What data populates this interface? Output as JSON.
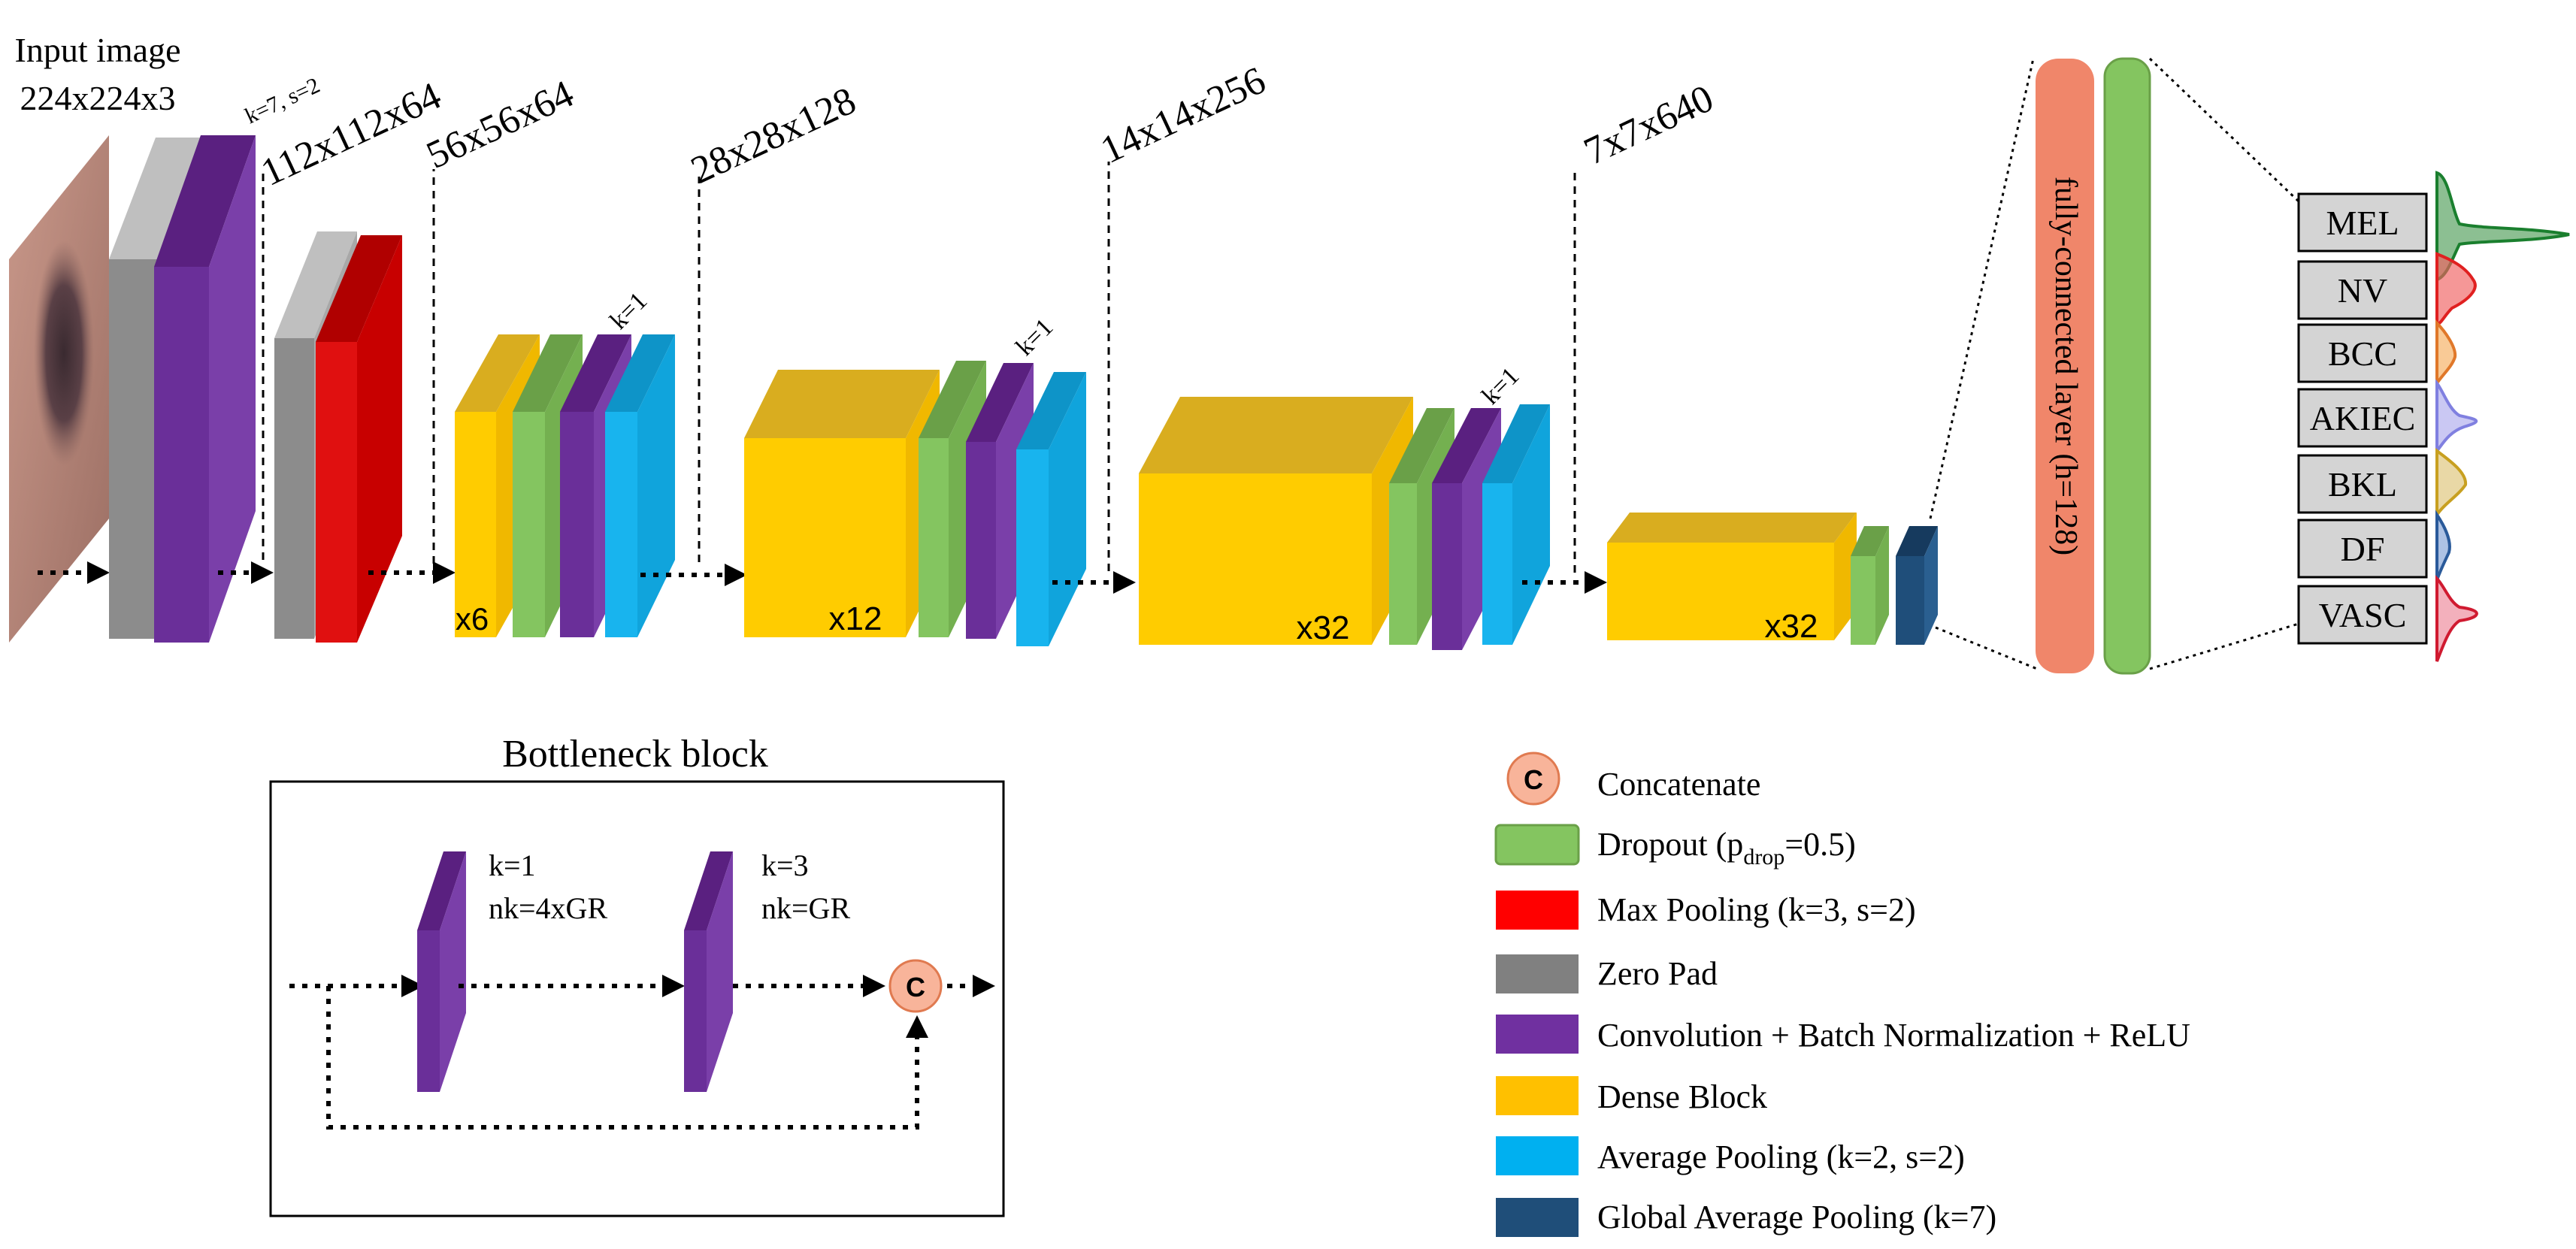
{
  "input": {
    "title": "Input image",
    "dims": "224x224x3"
  },
  "stages": [
    {
      "dim": "112x112x64",
      "kernel": "k=7, s=2"
    },
    {
      "dim": "56x56x64"
    },
    {
      "dim": "28x28x128",
      "repeat": "x6",
      "kernel": "k=1"
    },
    {
      "dim": "14x14x256",
      "repeat": "x12",
      "kernel": "k=1"
    },
    {
      "dim": "7x7x640",
      "repeat": "x32",
      "kernel": "k=1"
    },
    {
      "repeat": "x32"
    }
  ],
  "fc_label": "fully-connected layer (h=128)",
  "classes": [
    "MEL",
    "NV",
    "BCC",
    "AKIEC",
    "BKL",
    "DF",
    "VASC"
  ],
  "bottleneck": {
    "title": "Bottleneck block",
    "conv1_k": "k=1",
    "conv1_nk": "nk=4xGR",
    "conv2_k": "k=3",
    "conv2_nk": "nk=GR",
    "concat_symbol": "C"
  },
  "legend": {
    "concat_symbol": "C",
    "concatenate": "Concatenate",
    "dropout_prefix": "Dropout (p",
    "dropout_sub": "drop",
    "dropout_suffix": "=0.5)",
    "max_pool": "Max Pooling (k=3, s=2)",
    "zero_pad": "Zero Pad",
    "conv": "Convolution + Batch Normalization + ReLU",
    "dense": "Dense Block",
    "avg_pool": "Average Pooling (k=2, s=2)",
    "gap": "Global Average Pooling (k=7)"
  },
  "colors": {
    "zero_pad": "#8c8c8c",
    "conv": "#6a2f99",
    "max_pool": "#e01010",
    "dense": "#ffcc00",
    "dropout": "#84c560",
    "avg_pool": "#18b4ee",
    "gap": "#1f4e7a",
    "fc": "#f0866a",
    "concat": "#f8b49a"
  }
}
